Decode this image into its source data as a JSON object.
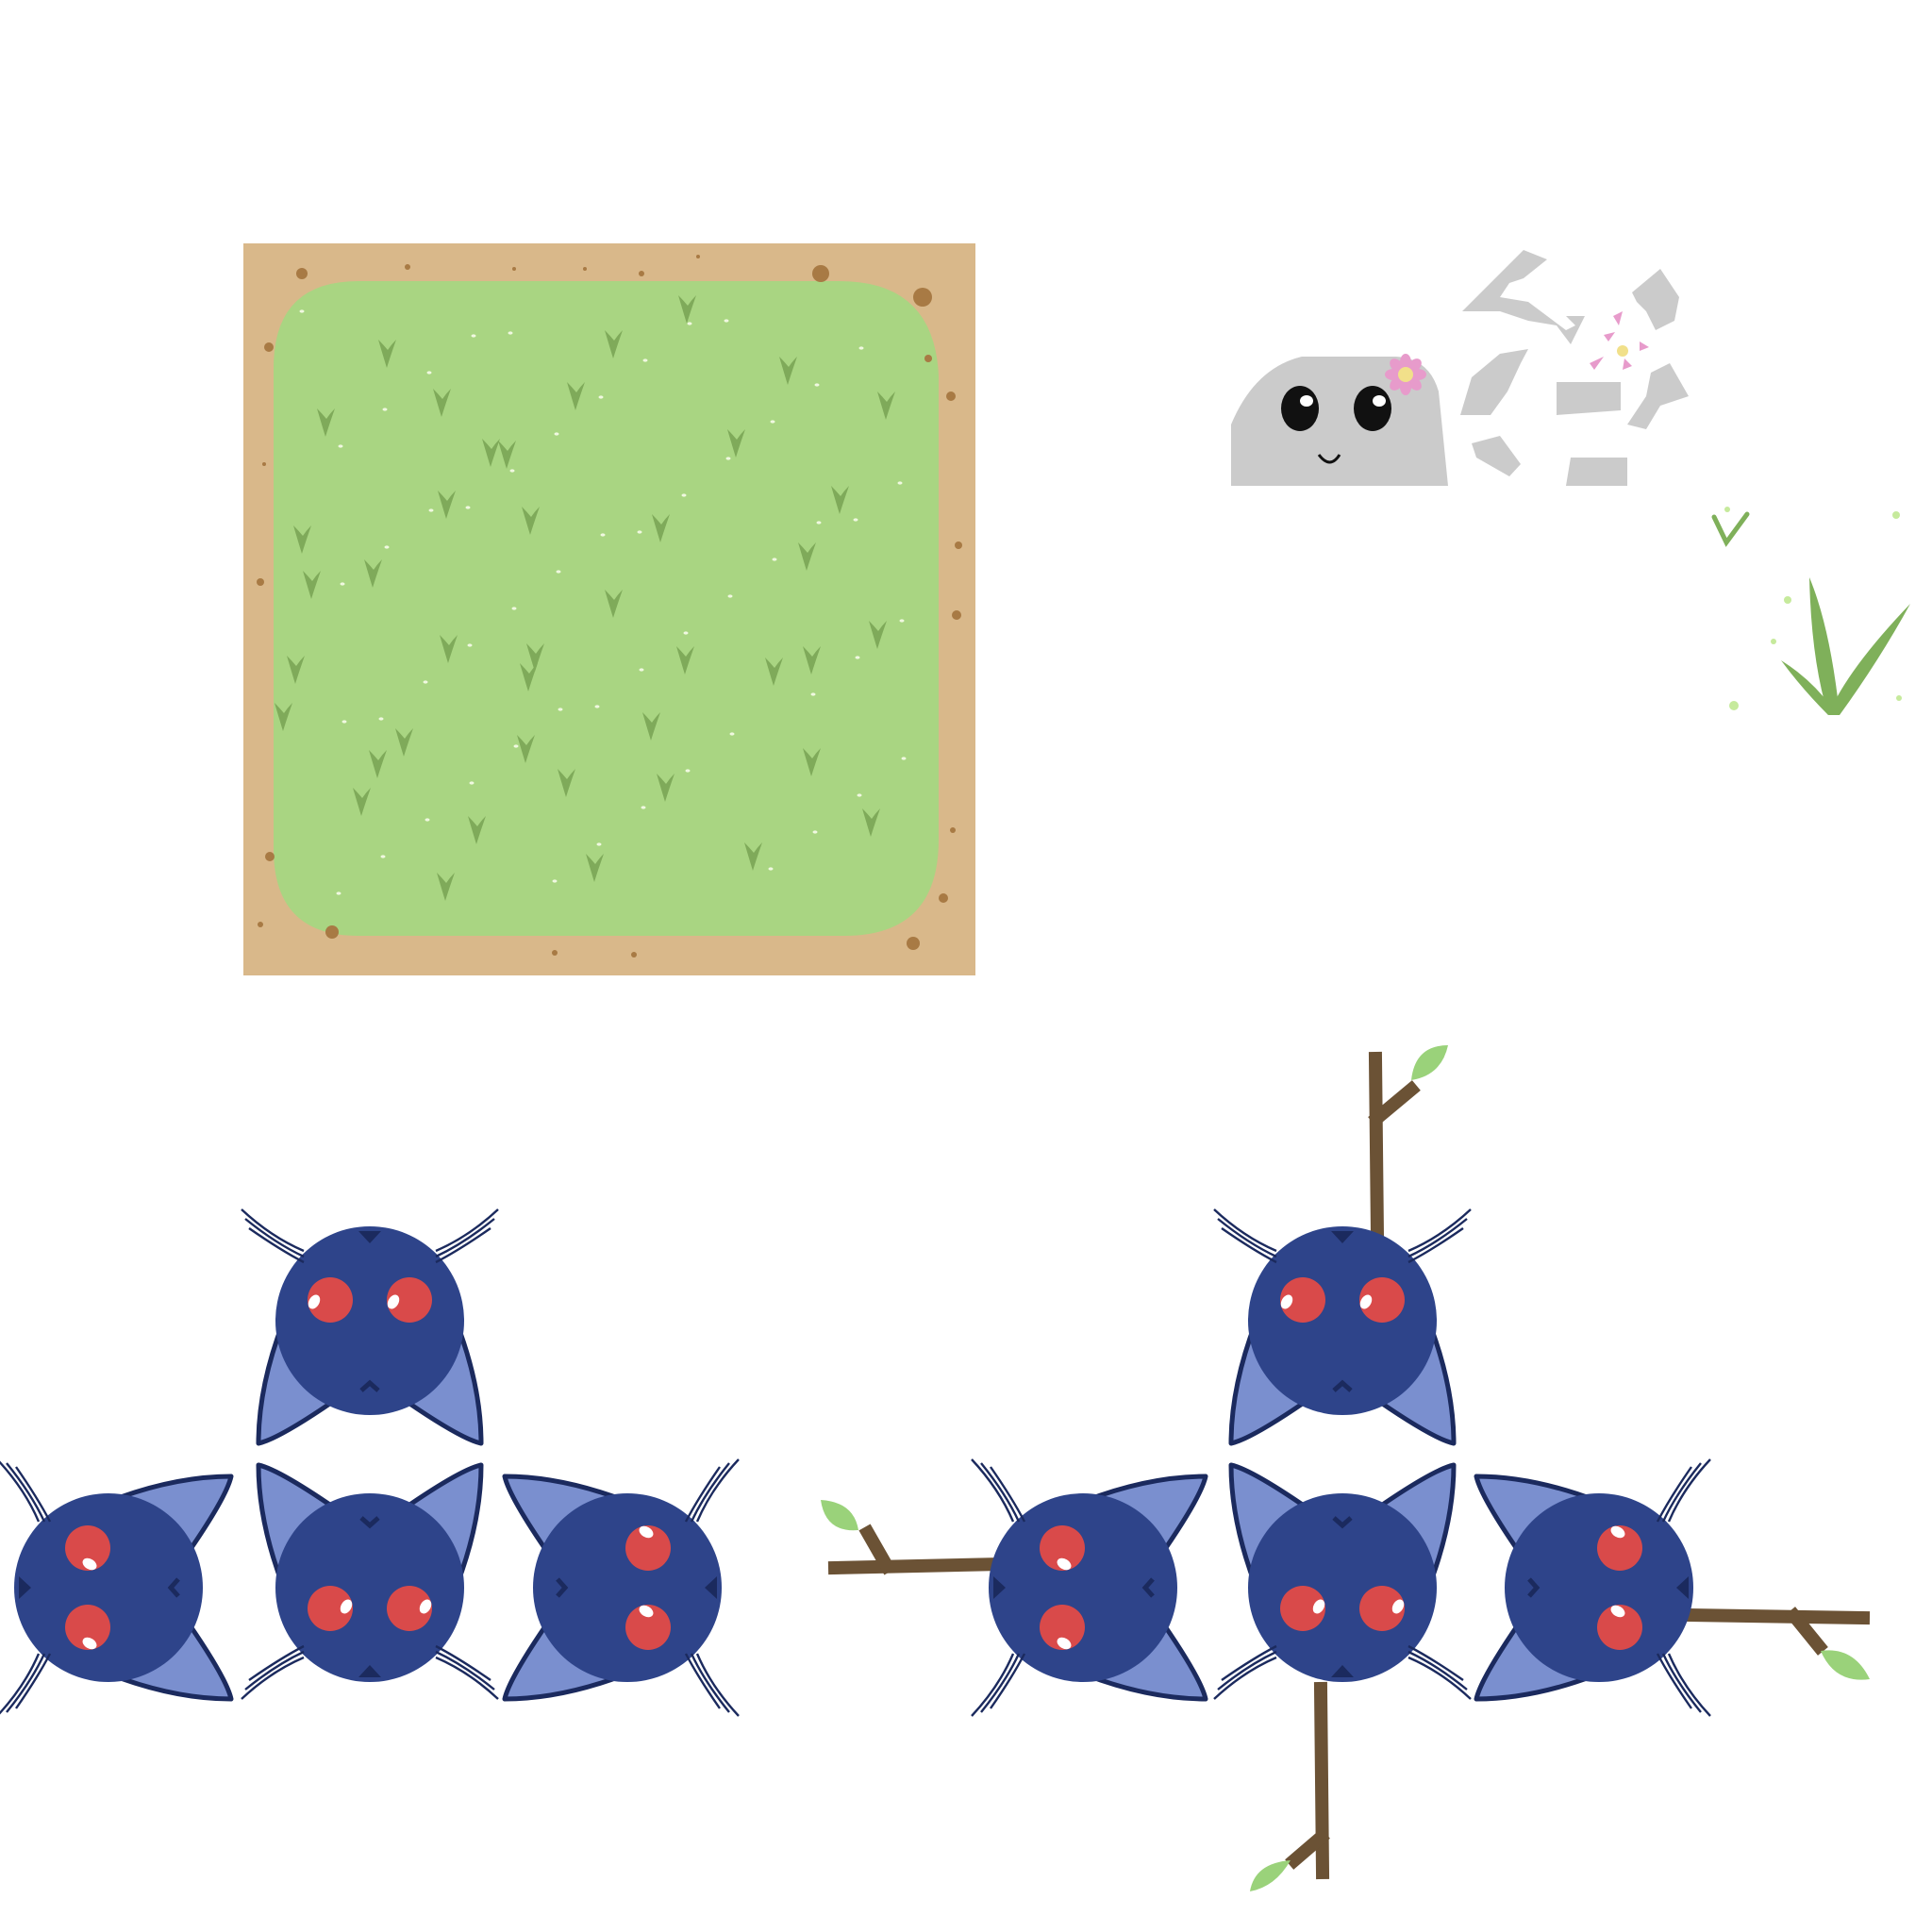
{
  "canvas": {
    "background": "#ffffff"
  },
  "palette": {
    "dirt": "#d9b88a",
    "dirt_speck": "#a87a44",
    "grass": "#a9d582",
    "grass_tuft": "#7faa5a",
    "grass_dot": "#f0f8e0",
    "rock": "#cbcbcb",
    "rock_face": "#111111",
    "flower": "#e79bcb",
    "flower_center": "#f1e08a",
    "cat_body": "#2e448a",
    "cat_outline": "#1b2a5e",
    "cat_ear_inner": "#7a8fcf",
    "cat_eye": "#d94a4a",
    "cat_eye_shine": "#ffffff",
    "stick": "#6b5235",
    "leaf": "#9ad27a",
    "sprout": "#7fb05a"
  },
  "sprites": {
    "grass_tile": {
      "name": "grass-tile",
      "tuft_count": 42
    },
    "rock": {
      "name": "rock-with-flower",
      "has_face": true
    },
    "rock_fragments": {
      "name": "broken-rock",
      "pieces": 8
    },
    "grass_sprites": {
      "name": "grass-sprouts"
    },
    "cat_set_plain": {
      "name": "cat-heads-plain",
      "orientations": [
        "up",
        "left",
        "down",
        "right"
      ]
    },
    "cat_set_sticks": {
      "name": "cat-heads-with-sticks",
      "orientations": [
        "up",
        "left",
        "down",
        "right"
      ]
    }
  }
}
